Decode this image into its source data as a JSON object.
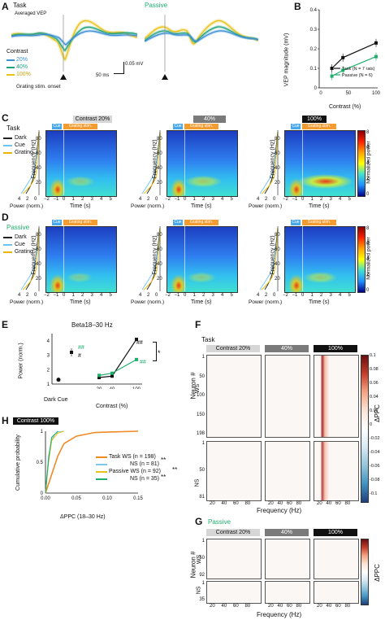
{
  "panels": {
    "A": {
      "label": "A",
      "task": "Task",
      "passive": "Passive",
      "averaged": "Averaged VEP",
      "contrast_title": "Contrast",
      "contrasts": [
        "20%",
        "40%",
        "100%"
      ],
      "scale_time": "50 ms",
      "scale_amp": "0.05 mV",
      "onset": "Grating stim. onset"
    },
    "B": {
      "label": "B",
      "ylabel": "VEP magnitude (mV)",
      "xlabel": "Contrast (%)",
      "legend_task": "Task (N = 7 rats)",
      "legend_passive": "Passive (N = 6)"
    },
    "C": {
      "label": "C",
      "row": "Task",
      "legend": [
        "Dark",
        "Cue",
        "Grating"
      ],
      "conds": [
        "Contrast 20%",
        "40%",
        "100%"
      ],
      "cue": "Cue",
      "grating": "Grating stim.",
      "ylabel": "Frequency (Hz)",
      "xlabel": "Time (s)",
      "power": "Power (norm.)",
      "cbar": "Normalized power"
    },
    "D": {
      "label": "D",
      "row": "Passive",
      "legend": [
        "Dark",
        "Cue",
        "Grating"
      ],
      "cue": "Cue",
      "grating": "Grating stim.",
      "ylabel": "Frequency (Hz)",
      "xlabel": "Time (s)",
      "power": "Power (norm.)",
      "cbar": "Normalized power"
    },
    "E": {
      "label": "E",
      "title": "Beta18–30 Hz",
      "ylabel": "Power (norm.)",
      "xlabel": "Contrast (%)",
      "dark_cue": "Dark Cue",
      "sig": "*",
      "hash1": "##",
      "hash2": "#"
    },
    "F": {
      "label": "F",
      "row": "Task",
      "conds": [
        "Contrast 20%",
        "40%",
        "100%"
      ],
      "ws": "WS",
      "ns": "NS",
      "ylabel": "Neuron #",
      "xlabel": "Frequency (Hz)",
      "cbar": "ΔPPC"
    },
    "G": {
      "label": "G",
      "row": "Passive",
      "conds": [
        "Contrast 20%",
        "40%",
        "100%"
      ],
      "ws": "WS",
      "ns": "NS",
      "ylabel": "Neuron #",
      "xlabel": "Frequency (Hz)",
      "cbar": "ΔPPC"
    },
    "H": {
      "label": "H",
      "cond": "Contrast 100%",
      "ylabel": "Cumulative probability",
      "xlabel": "ΔPPC (18–30 Hz)",
      "leg": [
        "Task WS (n = 198)",
        "NS (n = 81)",
        "Passive WS (n = 92)",
        "NS (n = 35)"
      ],
      "sig": "**"
    }
  },
  "ticks": {
    "spec_time": [
      "−2",
      "−1",
      "0",
      "1",
      "2",
      "3",
      "4",
      "5"
    ],
    "spec_freq": [
      "20",
      "40",
      "60",
      "80"
    ],
    "power": [
      "4",
      "2",
      "0"
    ],
    "b_y": [
      "0",
      "0.1",
      "0.2",
      "0.3",
      "0.4"
    ],
    "b_x": [
      "0",
      "50",
      "100"
    ],
    "e_y": [
      "1",
      "2",
      "3",
      "4"
    ],
    "e_x": [
      "20",
      "40",
      "100"
    ],
    "cbar": [
      "0",
      "2",
      "4",
      "6",
      "8"
    ],
    "ppc_cbar": [
      "0.1",
      "0.08",
      "0.06",
      "0.04",
      "0.02",
      "0",
      "-0.02",
      "-0.04",
      "-0.06",
      "-0.08",
      "-0.1"
    ],
    "f_ws": [
      "1",
      "50",
      "100",
      "150",
      "198"
    ],
    "f_ns": [
      "1",
      "50",
      "81"
    ],
    "g_ws": [
      "1",
      "50",
      "92"
    ],
    "g_ns": [
      "1",
      "35"
    ],
    "freq": [
      "20",
      "40",
      "60",
      "80"
    ],
    "h_y": [
      "0",
      "0.5",
      "1"
    ],
    "h_x": [
      "0.00",
      "0.05",
      "0.10",
      "0.15"
    ]
  },
  "colors": {
    "c20": "#3b8fd6",
    "c40": "#1fa37a",
    "c100": "#e8c21a",
    "task": "#111111",
    "passive": "#1fae6c",
    "orange": "#f39c32"
  },
  "chart_data": [
    {
      "type": "line",
      "title": "",
      "xlabel": "Contrast (%)",
      "ylabel": "VEP magnitude (mV)",
      "ylim": [
        0,
        0.4
      ],
      "x": [
        20,
        40,
        100
      ],
      "series": [
        {
          "name": "Task (N = 7 rats)",
          "values": [
            0.1,
            0.155,
            0.23
          ]
        },
        {
          "name": "Passive (N = 6)",
          "values": [
            0.06,
            0.09,
            0.16
          ]
        }
      ]
    },
    {
      "type": "line",
      "title": "Beta18–30 Hz",
      "xlabel": "Contrast (%)",
      "ylabel": "Power (norm.)",
      "ylim": [
        1,
        4.5
      ],
      "x": [
        20,
        40,
        100
      ],
      "series": [
        {
          "values": [
            1.45,
            1.55,
            4.1
          ]
        },
        {
          "values": [
            1.6,
            1.75,
            2.7
          ]
        }
      ],
      "extra": {
        "Dark": 1.3,
        "Cue": 3.2
      }
    },
    {
      "type": "line",
      "title": "Contrast 100%",
      "xlabel": "ΔPPC (18–30 Hz)",
      "ylabel": "Cumulative probability",
      "ylim": [
        0,
        1
      ],
      "series": [
        {
          "name": "Task WS (n = 198)",
          "x": [
            0,
            0.01,
            0.02,
            0.03,
            0.05,
            0.08,
            0.15
          ],
          "values": [
            0,
            0.3,
            0.6,
            0.8,
            0.92,
            0.98,
            1
          ]
        },
        {
          "name": "NS (n = 81)",
          "x": [
            0,
            0.005,
            0.01,
            0.015,
            0.02,
            0.03
          ],
          "values": [
            0,
            0.6,
            0.85,
            0.95,
            0.99,
            1
          ]
        },
        {
          "name": "Passive WS (n = 92)",
          "x": [
            0,
            0.005,
            0.01,
            0.02,
            0.03
          ],
          "values": [
            0,
            0.5,
            0.85,
            0.97,
            1
          ]
        },
        {
          "name": "NS (n = 35)",
          "x": [
            0,
            0.005,
            0.01,
            0.02
          ],
          "values": [
            0,
            0.55,
            0.9,
            1
          ]
        }
      ]
    }
  ]
}
